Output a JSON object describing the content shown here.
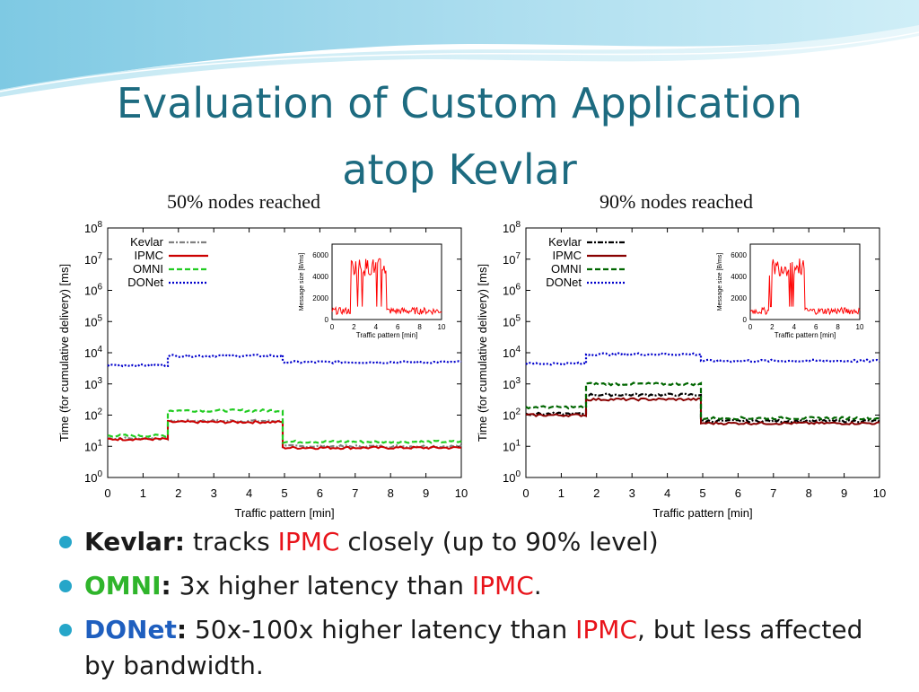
{
  "slide": {
    "title_line1": "Evaluation of Custom Application",
    "title_line2": "atop Kevlar",
    "caption_left": "50% nodes reached",
    "caption_right": "90% nodes reached"
  },
  "colors": {
    "title": "#1d6b80",
    "Kevlar": "#808080",
    "IPMC": "#cc0000",
    "OMNI": "#22cc22",
    "DONet": "#0000cc",
    "bullet": "#26a6c9"
  },
  "bullets": [
    {
      "key": "Kevlar",
      "colon": ":",
      "text1": " tracks ",
      "ipmc": "IPMC",
      "text2": " closely (up to 90% level)"
    },
    {
      "key": "OMNI",
      "colon": ":",
      "text1": " 3x higher latency than ",
      "ipmc": "IPMC",
      "text2": "."
    },
    {
      "key": "DONet",
      "colon": ":",
      "text1": " 50x-100x higher latency than ",
      "ipmc": "IPMC",
      "text2": ", but less affected by bandwidth."
    }
  ],
  "chart_data": [
    {
      "type": "line",
      "xlabel": "Traffic pattern [min]",
      "ylabel": "Time (for cumulative delivery) [ms]",
      "xlim": [
        0,
        10
      ],
      "ylim_exp": [
        0,
        8
      ],
      "y_scale": "log",
      "xticks": [
        "0",
        "1",
        "2",
        "3",
        "4",
        "5",
        "6",
        "7",
        "8",
        "9",
        "10"
      ],
      "yticks": [
        "0",
        "1",
        "2",
        "3",
        "4",
        "5",
        "6",
        "7",
        "8"
      ],
      "legend_position": "top-left",
      "series": [
        {
          "name": "Kevlar",
          "color": "#808080",
          "dash": "dashdot",
          "segments": [
            [
              0,
              1.7,
              18
            ],
            [
              1.7,
              4.95,
              65
            ],
            [
              4.95,
              10,
              10
            ]
          ]
        },
        {
          "name": "IPMC",
          "color": "#cc0000",
          "dash": "solid",
          "segments": [
            [
              0,
              1.7,
              17
            ],
            [
              1.7,
              4.95,
              60
            ],
            [
              4.95,
              10,
              9
            ]
          ]
        },
        {
          "name": "OMNI",
          "color": "#22cc22",
          "dash": "dashed",
          "segments": [
            [
              0,
              1.7,
              22
            ],
            [
              1.7,
              4.95,
              140
            ],
            [
              4.95,
              10,
              14
            ]
          ]
        },
        {
          "name": "DONet",
          "color": "#0000cc",
          "dash": "dotted",
          "segments": [
            [
              0,
              1.7,
              4000
            ],
            [
              1.7,
              4.95,
              8000
            ],
            [
              4.95,
              10,
              5000
            ]
          ]
        }
      ],
      "inset": {
        "xlabel": "Traffic pattern [min]",
        "ylabel": "Message size [B/ms]",
        "xlim": [
          0,
          10
        ],
        "ylim": [
          0,
          7000
        ],
        "xticks": [
          "0",
          "2",
          "4",
          "6",
          "8",
          "10"
        ],
        "yticks": [
          "0",
          "2000",
          "4000",
          "6000"
        ],
        "series": {
          "color": "#ff0000",
          "low": 800,
          "high": 5600,
          "high_from": 1.7,
          "high_to": 4.95
        }
      }
    },
    {
      "type": "line",
      "xlabel": "Traffic pattern [min]",
      "ylabel": "Time (for cumulative delivery) [ms]",
      "xlim": [
        0,
        10
      ],
      "ylim_exp": [
        0,
        8
      ],
      "y_scale": "log",
      "xticks": [
        "0",
        "1",
        "2",
        "3",
        "4",
        "5",
        "6",
        "7",
        "8",
        "9",
        "10"
      ],
      "yticks": [
        "0",
        "1",
        "2",
        "3",
        "4",
        "5",
        "6",
        "7",
        "8"
      ],
      "legend_position": "top-left",
      "series": [
        {
          "name": "Kevlar",
          "color": "#000000",
          "dash": "dashdot",
          "segments": [
            [
              0,
              1.7,
              110
            ],
            [
              1.7,
              4.95,
              450
            ],
            [
              4.95,
              10,
              65
            ]
          ]
        },
        {
          "name": "IPMC",
          "color": "#880000",
          "dash": "solid",
          "segments": [
            [
              0,
              1.7,
              100
            ],
            [
              1.7,
              4.95,
              320
            ],
            [
              4.95,
              10,
              55
            ]
          ]
        },
        {
          "name": "OMNI",
          "color": "#006600",
          "dash": "dashed",
          "segments": [
            [
              0,
              1.7,
              180
            ],
            [
              1.7,
              4.95,
              1000
            ],
            [
              4.95,
              10,
              80
            ]
          ]
        },
        {
          "name": "DONet",
          "color": "#0000cc",
          "dash": "dotted",
          "segments": [
            [
              0,
              1.7,
              4500
            ],
            [
              1.7,
              4.95,
              9000
            ],
            [
              4.95,
              10,
              5500
            ]
          ]
        }
      ],
      "inset": {
        "xlabel": "Traffic pattern [min]",
        "ylabel": "Message size [B/ms]",
        "xlim": [
          0,
          10
        ],
        "ylim": [
          0,
          7000
        ],
        "xticks": [
          "0",
          "2",
          "4",
          "6",
          "8",
          "10"
        ],
        "yticks": [
          "0",
          "2000",
          "4000",
          "6000"
        ],
        "series": {
          "color": "#ff0000",
          "low": 800,
          "high": 5600,
          "high_from": 1.7,
          "high_to": 4.95
        }
      }
    }
  ]
}
